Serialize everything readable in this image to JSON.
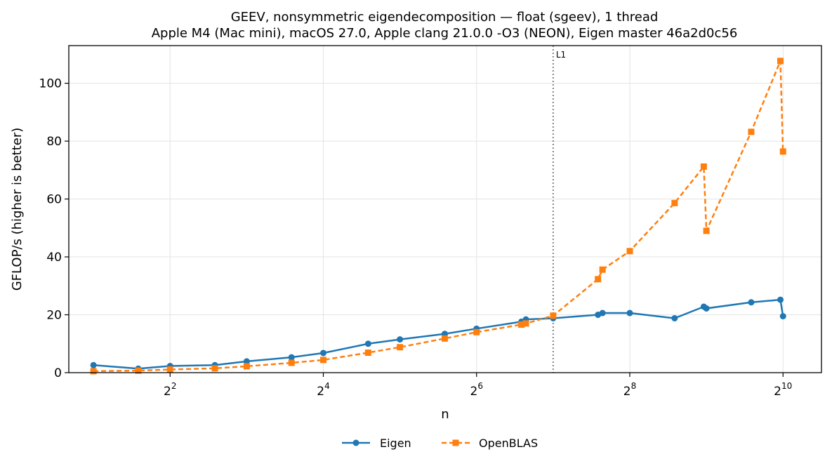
{
  "chart_data": {
    "type": "line",
    "title_line1": "GEEV, nonsymmetric eigendecomposition — float (sgeev), 1 thread",
    "title_line2": "Apple M4 (Mac mini), macOS 27.0, Apple clang 21.0.0 -O3 (NEON), Eigen master 46a2d0c56",
    "xlabel": "n",
    "ylabel": "GFLOP/s (higher is better)",
    "x_scale": "log2",
    "xlim": [
      1.6,
      1450
    ],
    "ylim": [
      0,
      113
    ],
    "x_ticks": [
      {
        "value": 4,
        "base": "2",
        "exp": "2"
      },
      {
        "value": 16,
        "base": "2",
        "exp": "4"
      },
      {
        "value": 64,
        "base": "2",
        "exp": "6"
      },
      {
        "value": 256,
        "base": "2",
        "exp": "8"
      },
      {
        "value": 1024,
        "base": "2",
        "exp": "10"
      }
    ],
    "y_ticks": [
      0,
      20,
      40,
      60,
      80,
      100
    ],
    "grid": true,
    "vline": {
      "x": 128,
      "label": "L1",
      "color": "#555555"
    },
    "legend_position": "bottom-center",
    "series": [
      {
        "name": "Eigen",
        "color": "#1f77b4",
        "marker": "circle",
        "linestyle": "solid",
        "x": [
          2,
          3,
          4,
          6,
          8,
          12,
          16,
          24,
          32,
          48,
          64,
          96,
          100,
          128,
          192,
          200,
          256,
          384,
          500,
          512,
          768,
          1000,
          1024
        ],
        "y": [
          2.6,
          1.4,
          2.3,
          2.6,
          3.9,
          5.3,
          6.8,
          10.0,
          11.5,
          13.4,
          15.2,
          17.6,
          18.4,
          18.8,
          20.0,
          20.6,
          20.6,
          18.8,
          22.8,
          22.2,
          24.3,
          25.2,
          19.5
        ]
      },
      {
        "name": "OpenBLAS",
        "color": "#ff7f0e",
        "marker": "square",
        "linestyle": "dashed",
        "x": [
          2,
          3,
          4,
          6,
          8,
          12,
          16,
          24,
          32,
          48,
          64,
          96,
          100,
          128,
          192,
          200,
          256,
          384,
          500,
          512,
          768,
          1000,
          1024
        ],
        "y": [
          0.5,
          0.7,
          1.1,
          1.5,
          2.2,
          3.4,
          4.4,
          6.9,
          8.8,
          11.8,
          14.0,
          16.6,
          17.0,
          19.7,
          32.3,
          35.6,
          42.0,
          58.6,
          71.2,
          49.0,
          83.2,
          107.7,
          76.4
        ]
      }
    ]
  }
}
